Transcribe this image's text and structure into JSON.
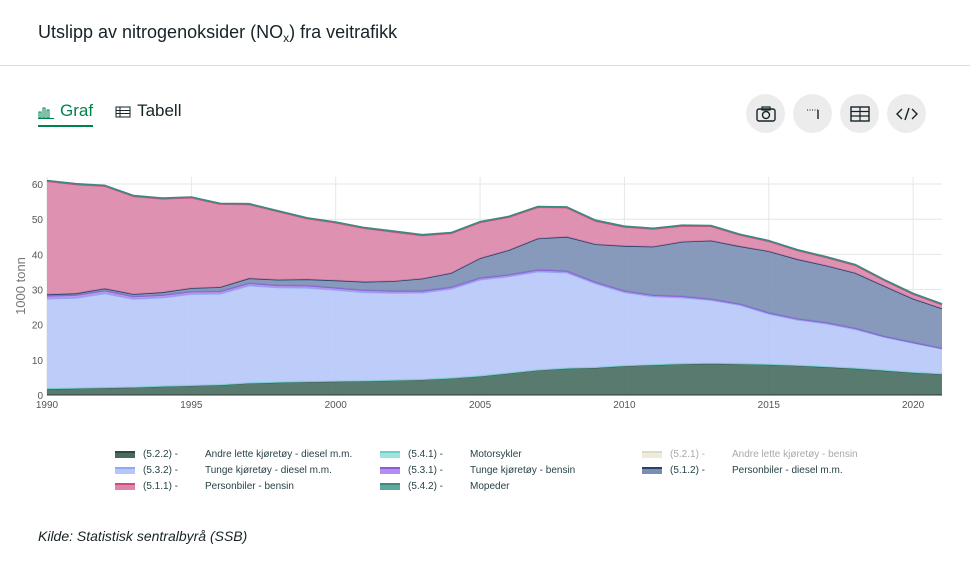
{
  "header": {
    "title_main": "Utslipp av nitrogenoksider (NO",
    "title_sub": "x",
    "title_end": ") fra veitrafikk"
  },
  "tabs": [
    {
      "label": "Graf",
      "icon": "bar-chart-icon"
    },
    {
      "label": "Tabell",
      "icon": "table-icon"
    }
  ],
  "tools": [
    {
      "name": "download-image-button",
      "icon": "camera-icon"
    },
    {
      "name": "menu-button",
      "icon": "dotted-menu-icon"
    },
    {
      "name": "table-view-button",
      "icon": "table-icon"
    },
    {
      "name": "embed-button",
      "icon": "code-icon"
    }
  ],
  "source": "Kilde: Statistisk sentralbyrå (SSB)",
  "chart_data": {
    "type": "area",
    "stacked": true,
    "ylabel": "1000 tonn",
    "ylim": [
      0,
      62
    ],
    "yticks": [
      0,
      10,
      20,
      30,
      40,
      50,
      60
    ],
    "xlim": [
      1990,
      2021
    ],
    "xticks": [
      1990,
      1995,
      2000,
      2005,
      2010,
      2015,
      2020
    ],
    "x": [
      1990,
      1991,
      1992,
      1993,
      1994,
      1995,
      1996,
      1997,
      1998,
      1999,
      2000,
      2001,
      2002,
      2003,
      2004,
      2005,
      2006,
      2007,
      2008,
      2009,
      2010,
      2011,
      2012,
      2013,
      2014,
      2015,
      2016,
      2017,
      2018,
      2019,
      2020,
      2021
    ],
    "series": [
      {
        "code": "(5.2.2)",
        "name": "Andre lette kjøretøy - diesel m.m.",
        "color": "#2d4a42",
        "fill": "#476b5e",
        "visible": true,
        "values": [
          1.8,
          1.9,
          2.1,
          2.2,
          2.5,
          2.7,
          2.9,
          3.4,
          3.6,
          3.8,
          3.9,
          4.0,
          4.2,
          4.4,
          4.8,
          5.4,
          6.2,
          7.1,
          7.6,
          7.8,
          8.3,
          8.6,
          8.9,
          9.0,
          8.9,
          8.7,
          8.4,
          8.0,
          7.6,
          7.0,
          6.4,
          6.0
        ]
      },
      {
        "code": "(5.4.1)",
        "name": "Motorsykler",
        "color": "#6ecfc6",
        "fill": "#9ee3dc",
        "visible": true,
        "values": [
          0.1,
          0.1,
          0.1,
          0.1,
          0.1,
          0.1,
          0.1,
          0.1,
          0.1,
          0.1,
          0.1,
          0.1,
          0.1,
          0.1,
          0.1,
          0.1,
          0.1,
          0.1,
          0.1,
          0.1,
          0.1,
          0.1,
          0.1,
          0.1,
          0.1,
          0.1,
          0.1,
          0.1,
          0.1,
          0.1,
          0.1,
          0.1
        ]
      },
      {
        "code": "(5.2.1)",
        "name": "Andre lette kjøretøy - bensin",
        "color": "#c9c2a3",
        "fill": "#e3ddc5",
        "visible": false,
        "values": [
          0.3,
          0.3,
          0.3,
          0.3,
          0.3,
          0.3,
          0.3,
          0.3,
          0.2,
          0.2,
          0.2,
          0.2,
          0.2,
          0.2,
          0.2,
          0.1,
          0.1,
          0.1,
          0.1,
          0.1,
          0.1,
          0.1,
          0.1,
          0.1,
          0.1,
          0.1,
          0.1,
          0.1,
          0.1,
          0.1,
          0.1,
          0.1
        ]
      },
      {
        "code": "(5.3.2)",
        "name": "Tunge kjøretøy - diesel m.m.",
        "color": "#91a9f0",
        "fill": "#b6c6f8",
        "visible": true,
        "values": [
          25.5,
          25.6,
          26.7,
          25.0,
          25.1,
          25.9,
          25.8,
          27.6,
          26.9,
          26.6,
          25.9,
          25.1,
          24.7,
          24.6,
          25.3,
          27.3,
          27.4,
          27.9,
          27.1,
          23.8,
          20.8,
          19.3,
          18.7,
          17.9,
          16.6,
          14.3,
          12.9,
          12.2,
          11.0,
          9.4,
          8.3,
          7.0
        ]
      },
      {
        "code": "(5.3.1)",
        "name": "Tunge kjøretøy - bensin",
        "color": "#8a5dd9",
        "fill": "#b28ef0",
        "visible": true,
        "values": [
          0.8,
          0.8,
          0.8,
          0.7,
          0.7,
          0.7,
          0.7,
          0.7,
          0.6,
          0.6,
          0.6,
          0.6,
          0.6,
          0.5,
          0.5,
          0.5,
          0.5,
          0.5,
          0.5,
          0.4,
          0.4,
          0.4,
          0.4,
          0.3,
          0.3,
          0.3,
          0.3,
          0.3,
          0.3,
          0.2,
          0.2,
          0.2
        ]
      },
      {
        "code": "(5.1.2)",
        "name": "Personbiler - diesel m.m.",
        "color": "#29406e",
        "fill": "#7a8fb5",
        "visible": true,
        "values": [
          0.4,
          0.5,
          0.6,
          0.7,
          0.8,
          1.0,
          1.2,
          1.4,
          1.6,
          1.8,
          2.1,
          2.4,
          2.8,
          3.5,
          4.0,
          5.6,
          7.0,
          8.9,
          9.7,
          10.8,
          12.8,
          13.8,
          15.5,
          16.6,
          16.4,
          17.5,
          16.9,
          16.2,
          15.7,
          14.3,
          12.4,
          11.3
        ]
      },
      {
        "code": "(5.1.1)",
        "name": "Personbiler - bensin",
        "color": "#d14b82",
        "fill": "#dc85a9",
        "visible": true,
        "values": [
          32.2,
          31.0,
          29.1,
          27.8,
          26.6,
          25.7,
          23.6,
          21.0,
          19.4,
          17.3,
          16.4,
          15.2,
          14.0,
          12.3,
          11.3,
          10.2,
          9.4,
          8.9,
          8.3,
          6.6,
          5.4,
          5.0,
          4.5,
          4.1,
          3.2,
          2.8,
          2.5,
          2.3,
          2.2,
          1.6,
          1.3,
          1.1
        ]
      },
      {
        "code": "(5.4.2)",
        "name": "Mopeder",
        "color": "#3a8a7f",
        "fill": "#5fa89d",
        "visible": true,
        "values": [
          0.2,
          0.2,
          0.2,
          0.2,
          0.2,
          0.2,
          0.2,
          0.2,
          0.2,
          0.2,
          0.2,
          0.2,
          0.2,
          0.2,
          0.2,
          0.2,
          0.2,
          0.2,
          0.2,
          0.2,
          0.2,
          0.2,
          0.2,
          0.2,
          0.2,
          0.2,
          0.2,
          0.2,
          0.2,
          0.2,
          0.2,
          0.2
        ]
      }
    ],
    "legend_order": [
      "(5.2.2)",
      "(5.4.1)",
      "(5.2.1)",
      "(5.3.2)",
      "(5.3.1)",
      "(5.1.2)",
      "(5.1.1)",
      "(5.4.2)"
    ]
  }
}
